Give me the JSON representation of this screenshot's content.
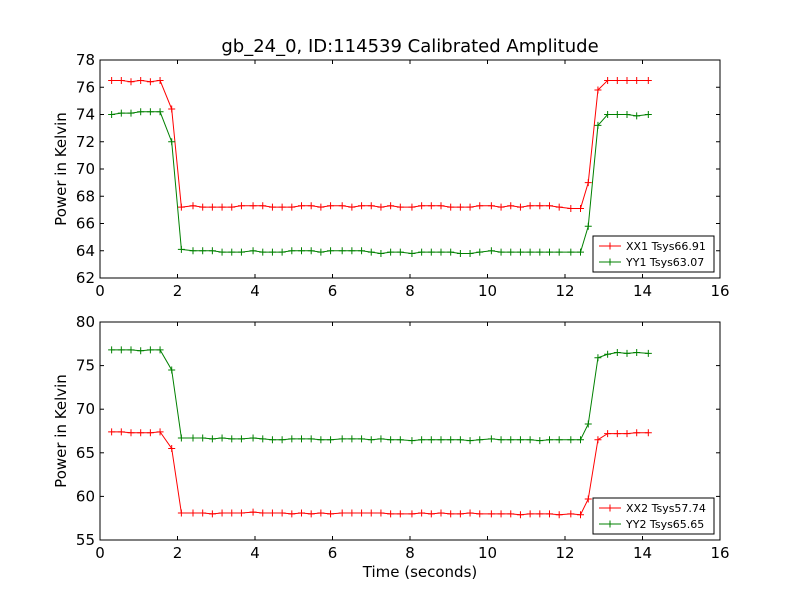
{
  "title": "gb_24_0, ID:114539 Calibrated Amplitude",
  "chart_data": [
    {
      "type": "line",
      "title": "gb_24_0, ID:114539 Calibrated Amplitude",
      "xlabel": "",
      "ylabel": "Power in Kelvin",
      "xlim": [
        0,
        16
      ],
      "ylim": [
        62,
        78
      ],
      "xticks": [
        0,
        2,
        4,
        6,
        8,
        10,
        12,
        14,
        16
      ],
      "yticks": [
        62,
        64,
        66,
        68,
        70,
        72,
        74,
        76,
        78
      ],
      "grid": false,
      "legend_position": "lower-right",
      "x": [
        0.3,
        0.55,
        0.8,
        1.05,
        1.3,
        1.55,
        1.85,
        2.1,
        2.4,
        2.65,
        2.9,
        3.15,
        3.4,
        3.65,
        3.95,
        4.2,
        4.45,
        4.7,
        4.95,
        5.2,
        5.45,
        5.7,
        5.95,
        6.25,
        6.5,
        6.75,
        7.0,
        7.25,
        7.5,
        7.75,
        8.05,
        8.3,
        8.55,
        8.8,
        9.05,
        9.3,
        9.55,
        9.8,
        10.1,
        10.35,
        10.6,
        10.85,
        11.1,
        11.35,
        11.6,
        11.85,
        12.15,
        12.4,
        12.6,
        12.85,
        13.1,
        13.35,
        13.6,
        13.85,
        14.15
      ],
      "series": [
        {
          "name": "XX1 Tsys66.91",
          "color": "#ff0000",
          "values": [
            76.5,
            76.5,
            76.4,
            76.5,
            76.4,
            76.5,
            74.4,
            67.2,
            67.3,
            67.2,
            67.2,
            67.2,
            67.2,
            67.3,
            67.3,
            67.3,
            67.2,
            67.2,
            67.2,
            67.3,
            67.3,
            67.2,
            67.3,
            67.3,
            67.2,
            67.3,
            67.3,
            67.2,
            67.3,
            67.2,
            67.2,
            67.3,
            67.3,
            67.3,
            67.2,
            67.2,
            67.2,
            67.3,
            67.3,
            67.2,
            67.3,
            67.2,
            67.3,
            67.3,
            67.3,
            67.2,
            67.1,
            67.1,
            69.0,
            75.8,
            76.5,
            76.5,
            76.5,
            76.5,
            76.5
          ]
        },
        {
          "name": "YY1 Tsys63.07",
          "color": "#008000",
          "values": [
            74.0,
            74.1,
            74.1,
            74.2,
            74.2,
            74.2,
            72.0,
            64.1,
            64.0,
            64.0,
            64.0,
            63.9,
            63.9,
            63.9,
            64.0,
            63.9,
            63.9,
            63.9,
            64.0,
            64.0,
            64.0,
            63.9,
            64.0,
            64.0,
            64.0,
            64.0,
            63.9,
            63.8,
            63.9,
            63.9,
            63.8,
            63.9,
            63.9,
            63.9,
            63.9,
            63.8,
            63.8,
            63.9,
            64.0,
            63.9,
            63.9,
            63.9,
            63.9,
            63.9,
            63.9,
            63.9,
            63.9,
            63.9,
            65.8,
            73.2,
            74.0,
            74.0,
            74.0,
            73.9,
            74.0
          ]
        }
      ]
    },
    {
      "type": "line",
      "title": "",
      "xlabel": "Time (seconds)",
      "ylabel": "Power in Kelvin",
      "xlim": [
        0,
        16
      ],
      "ylim": [
        55,
        80
      ],
      "xticks": [
        0,
        2,
        4,
        6,
        8,
        10,
        12,
        14,
        16
      ],
      "yticks": [
        55,
        60,
        65,
        70,
        75,
        80
      ],
      "grid": false,
      "legend_position": "lower-right",
      "x": [
        0.3,
        0.55,
        0.8,
        1.05,
        1.3,
        1.55,
        1.85,
        2.1,
        2.4,
        2.65,
        2.9,
        3.15,
        3.4,
        3.65,
        3.95,
        4.2,
        4.45,
        4.7,
        4.95,
        5.2,
        5.45,
        5.7,
        5.95,
        6.25,
        6.5,
        6.75,
        7.0,
        7.25,
        7.5,
        7.75,
        8.05,
        8.3,
        8.55,
        8.8,
        9.05,
        9.3,
        9.55,
        9.8,
        10.1,
        10.35,
        10.6,
        10.85,
        11.1,
        11.35,
        11.6,
        11.85,
        12.15,
        12.4,
        12.6,
        12.85,
        13.1,
        13.35,
        13.6,
        13.85,
        14.15
      ],
      "series": [
        {
          "name": "XX2 Tsys57.74",
          "color": "#ff0000",
          "values": [
            67.4,
            67.4,
            67.3,
            67.3,
            67.3,
            67.4,
            65.5,
            58.1,
            58.1,
            58.1,
            58.0,
            58.1,
            58.1,
            58.1,
            58.2,
            58.1,
            58.1,
            58.1,
            58.0,
            58.1,
            58.0,
            58.1,
            58.0,
            58.1,
            58.1,
            58.1,
            58.1,
            58.1,
            58.0,
            58.0,
            58.0,
            58.1,
            58.0,
            58.1,
            58.0,
            58.0,
            58.1,
            58.0,
            58.0,
            58.0,
            58.0,
            57.9,
            58.0,
            58.0,
            58.0,
            57.9,
            58.0,
            57.9,
            59.7,
            66.5,
            67.2,
            67.2,
            67.2,
            67.3,
            67.3
          ]
        },
        {
          "name": "YY2 Tsys65.65",
          "color": "#008000",
          "values": [
            76.8,
            76.8,
            76.8,
            76.7,
            76.8,
            76.8,
            74.5,
            66.7,
            66.7,
            66.7,
            66.6,
            66.7,
            66.6,
            66.6,
            66.7,
            66.6,
            66.5,
            66.5,
            66.6,
            66.6,
            66.6,
            66.5,
            66.5,
            66.6,
            66.6,
            66.6,
            66.5,
            66.6,
            66.5,
            66.5,
            66.4,
            66.5,
            66.5,
            66.5,
            66.5,
            66.5,
            66.4,
            66.5,
            66.6,
            66.5,
            66.5,
            66.5,
            66.5,
            66.4,
            66.5,
            66.5,
            66.5,
            66.5,
            68.3,
            75.9,
            76.3,
            76.5,
            76.4,
            76.5,
            76.4
          ]
        }
      ]
    }
  ]
}
